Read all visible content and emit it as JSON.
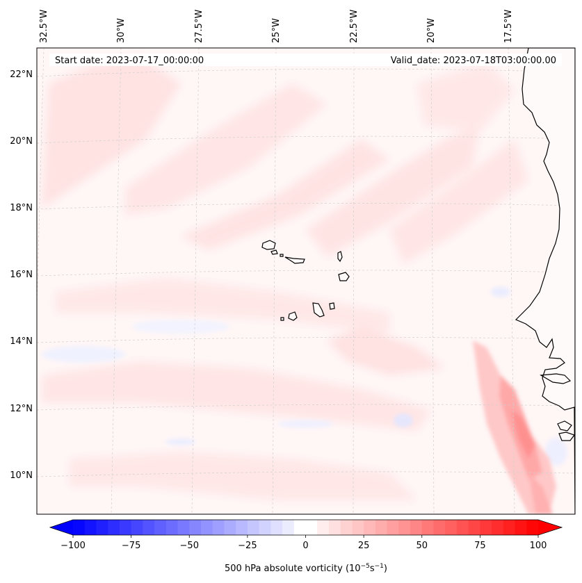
{
  "map": {
    "start_date": "Start date: 2023-07-17_00:00:00",
    "valid_date": "Valid_date: 2023-07-18T03:00:00.00",
    "lon_labels": [
      "32.5°W",
      "30°W",
      "27.5°W",
      "25°W",
      "22.5°W",
      "20°W",
      "17.5°W"
    ],
    "lat_labels": [
      "22°N",
      "20°N",
      "18°N",
      "16°N",
      "14°N",
      "12°N",
      "10°N"
    ],
    "background_color": "#fff6f6",
    "land_color": "#fffafa",
    "coast_color": "#000000"
  },
  "colorbar": {
    "ticks": [
      "−100",
      "−75",
      "−50",
      "−25",
      "0",
      "25",
      "50",
      "75",
      "100"
    ],
    "min": -100,
    "max": 100,
    "neg_color": "#0000ff",
    "pos_color": "#ff0000",
    "label_prefix": "500 hPa absolute vorticity (10",
    "label_exp1": "−5",
    "label_mid": "s",
    "label_exp2": "−1",
    "label_suffix": ")"
  }
}
